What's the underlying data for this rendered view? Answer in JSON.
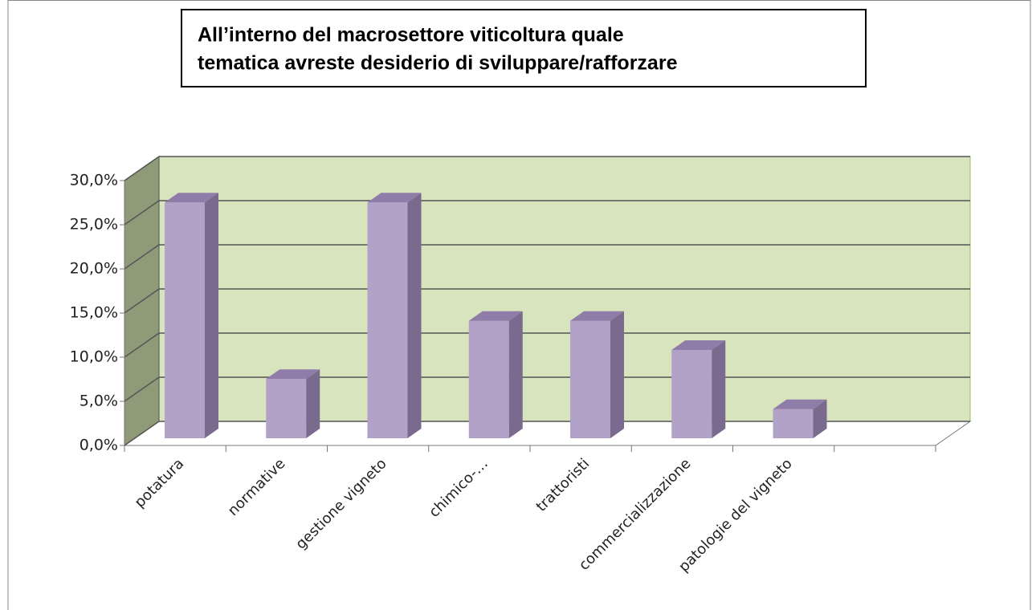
{
  "chart_data": {
    "type": "bar3d",
    "title": [
      "All’interno del macrosettore viticoltura quale",
      "tematica avreste desiderio di sviluppare/rafforzare"
    ],
    "categories": [
      "potatura",
      "normative",
      "gestione vigneto",
      "chimico-…",
      "trattoristi",
      "commercializzazione",
      "patologie del vigneto",
      null
    ],
    "values": [
      26.7,
      6.7,
      26.7,
      13.3,
      13.3,
      10.0,
      3.3,
      null
    ],
    "color": "#b3a2c7",
    "ylim": [
      0,
      30
    ],
    "yticks": [
      {
        "value": 0,
        "label": "0,0%"
      },
      {
        "value": 5,
        "label": "5,0%"
      },
      {
        "value": 10,
        "label": "10,0%"
      },
      {
        "value": 15,
        "label": "15,0%"
      },
      {
        "value": 20,
        "label": "20,0%"
      },
      {
        "value": 25,
        "label": "25,0%"
      },
      {
        "value": 30,
        "label": "30,0%"
      }
    ],
    "grid": true
  }
}
